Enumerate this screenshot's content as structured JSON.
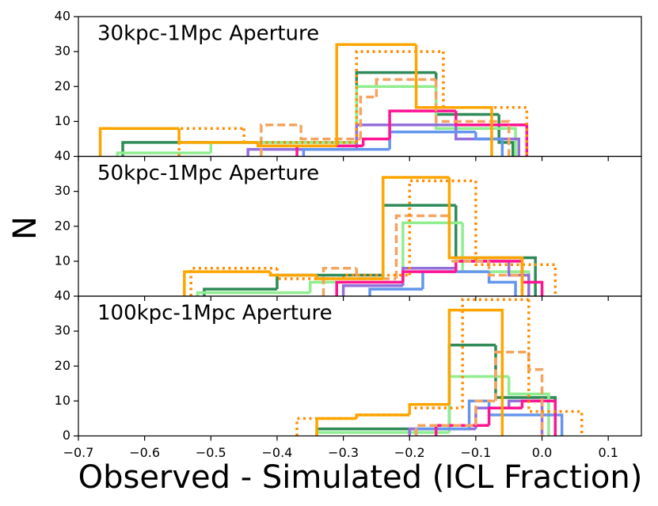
{
  "figure": {
    "xlabel": "Observed - Simulated (ICL Fraction)",
    "ylabel": "N"
  },
  "chart_data": [
    {
      "type": "histogram",
      "title": "30kpc-1Mpc Aperture",
      "xlim": [
        -0.7,
        0.15
      ],
      "ylim": [
        0,
        40
      ],
      "yticks": [
        10,
        20,
        30,
        40
      ],
      "series": [
        {
          "color": "#2e8b57",
          "style": "solid",
          "bins": [
            -0.633,
            -0.28,
            -0.16,
            -0.065,
            -0.044
          ],
          "values": [
            4,
            24,
            12,
            4
          ]
        },
        {
          "color": "#90ee90",
          "style": "solid",
          "bins": [
            -0.641,
            -0.5,
            -0.28,
            -0.16,
            -0.04
          ],
          "values": [
            1,
            4,
            20,
            8
          ]
        },
        {
          "color": "#9370db",
          "style": "solid",
          "bins": [
            -0.444,
            -0.28,
            -0.13,
            -0.035
          ],
          "values": [
            2,
            9,
            5
          ]
        },
        {
          "color": "#6495ed",
          "style": "solid",
          "bins": [
            -0.36,
            -0.23,
            -0.1,
            -0.06
          ],
          "values": [
            2,
            7,
            5
          ]
        },
        {
          "color": "#ff1493",
          "style": "solid",
          "bins": [
            -0.37,
            -0.27,
            -0.23,
            -0.13,
            -0.023
          ],
          "values": [
            3,
            5,
            13,
            9
          ]
        },
        {
          "color": "#f4a460",
          "style": "dashed",
          "bins": [
            -0.424,
            -0.364,
            -0.274,
            -0.25,
            -0.16,
            -0.05
          ],
          "values": [
            9,
            5,
            17,
            22,
            10
          ]
        },
        {
          "color": "#ff8c00",
          "style": "dotted",
          "bins": [
            -0.548,
            -0.45,
            -0.28,
            -0.149,
            -0.023
          ],
          "values": [
            8,
            4,
            30,
            14
          ]
        },
        {
          "color": "#ffa500",
          "style": "solid",
          "bins": [
            -0.667,
            -0.548,
            -0.429,
            -0.31,
            -0.19,
            -0.076
          ],
          "values": [
            8,
            4,
            3,
            32,
            14
          ]
        }
      ]
    },
    {
      "type": "histogram",
      "title": "50kpc-1Mpc Aperture",
      "xlim": [
        -0.7,
        0.15
      ],
      "ylim": [
        0,
        40
      ],
      "yticks": [
        10,
        20,
        30,
        40
      ],
      "series": [
        {
          "color": "#2e8b57",
          "style": "solid",
          "bins": [
            -0.51,
            -0.4,
            -0.24,
            -0.13,
            -0.01
          ],
          "values": [
            2,
            6,
            26,
            11
          ]
        },
        {
          "color": "#90ee90",
          "style": "solid",
          "bins": [
            -0.52,
            -0.35,
            -0.21,
            -0.12,
            -0.02
          ],
          "values": [
            1,
            4,
            21,
            7
          ]
        },
        {
          "color": "#9370db",
          "style": "solid",
          "bins": [
            -0.3,
            -0.21,
            -0.13,
            -0.05,
            -0.02
          ],
          "values": [
            3,
            8,
            10,
            6
          ]
        },
        {
          "color": "#6495ed",
          "style": "solid",
          "bins": [
            -0.26,
            -0.18,
            -0.08,
            -0.04
          ],
          "values": [
            2,
            7,
            4
          ]
        },
        {
          "color": "#ff1493",
          "style": "solid",
          "bins": [
            -0.31,
            -0.21,
            -0.13,
            -0.03,
            0.0
          ],
          "values": [
            4,
            7,
            10,
            4
          ]
        },
        {
          "color": "#f4a460",
          "style": "dashed",
          "bins": [
            -0.33,
            -0.28,
            -0.22,
            -0.14,
            -0.08,
            -0.03
          ],
          "values": [
            8,
            5,
            23,
            10,
            6
          ]
        },
        {
          "color": "#ff8c00",
          "style": "dotted",
          "bins": [
            -0.53,
            -0.4,
            -0.3,
            -0.2,
            -0.1,
            0.02
          ],
          "values": [
            8,
            5,
            6,
            33,
            9
          ]
        },
        {
          "color": "#ffa500",
          "style": "solid",
          "bins": [
            -0.54,
            -0.41,
            -0.34,
            -0.24,
            -0.14,
            -0.03
          ],
          "values": [
            7,
            6,
            5,
            34,
            11
          ]
        }
      ]
    },
    {
      "type": "histogram",
      "title": "100kpc-1Mpc Aperture",
      "xlim": [
        -0.7,
        0.15
      ],
      "ylim": [
        0,
        40
      ],
      "yticks": [
        0,
        10,
        20,
        30,
        40
      ],
      "xticks": [
        {
          "value": -0.7,
          "label": "−0.7"
        },
        {
          "value": -0.6,
          "label": "−0.6"
        },
        {
          "value": -0.5,
          "label": "−0.5"
        },
        {
          "value": -0.4,
          "label": "−0.4"
        },
        {
          "value": -0.3,
          "label": "−0.3"
        },
        {
          "value": -0.2,
          "label": "−0.2"
        },
        {
          "value": -0.1,
          "label": "−0.1"
        },
        {
          "value": 0.0,
          "label": "0.0"
        },
        0.1
      ],
      "series": [
        {
          "color": "#2e8b57",
          "style": "solid",
          "bins": [
            -0.34,
            -0.14,
            -0.07,
            0.0,
            0.02
          ],
          "values": [
            2,
            26,
            11,
            11
          ]
        },
        {
          "color": "#90ee90",
          "style": "solid",
          "bins": [
            -0.34,
            -0.14,
            -0.05,
            0.01
          ],
          "values": [
            1,
            17,
            12
          ]
        },
        {
          "color": "#9370db",
          "style": "solid",
          "bins": [
            -0.2,
            -0.1,
            -0.05,
            0.0
          ],
          "values": [
            2,
            8,
            10
          ]
        },
        {
          "color": "#6495ed",
          "style": "solid",
          "bins": [
            -0.19,
            -0.11,
            -0.08,
            0.03
          ],
          "values": [
            2,
            10,
            6
          ]
        },
        {
          "color": "#ff1493",
          "style": "solid",
          "bins": [
            -0.16,
            -0.08,
            -0.03,
            0.02
          ],
          "values": [
            3,
            8,
            10
          ]
        },
        {
          "color": "#f4a460",
          "style": "dashed",
          "bins": [
            -0.19,
            -0.1,
            -0.07,
            -0.02,
            0.0
          ],
          "values": [
            3,
            10,
            24,
            19
          ]
        },
        {
          "color": "#ff8c00",
          "style": "dotted",
          "bins": [
            -0.37,
            -0.28,
            -0.2,
            -0.12,
            -0.02,
            0.06
          ],
          "values": [
            5,
            6,
            8,
            39,
            7
          ]
        },
        {
          "color": "#ffa500",
          "style": "solid",
          "bins": [
            -0.34,
            -0.28,
            -0.2,
            -0.14,
            -0.06
          ],
          "values": [
            5,
            6,
            9,
            36
          ]
        }
      ]
    }
  ]
}
